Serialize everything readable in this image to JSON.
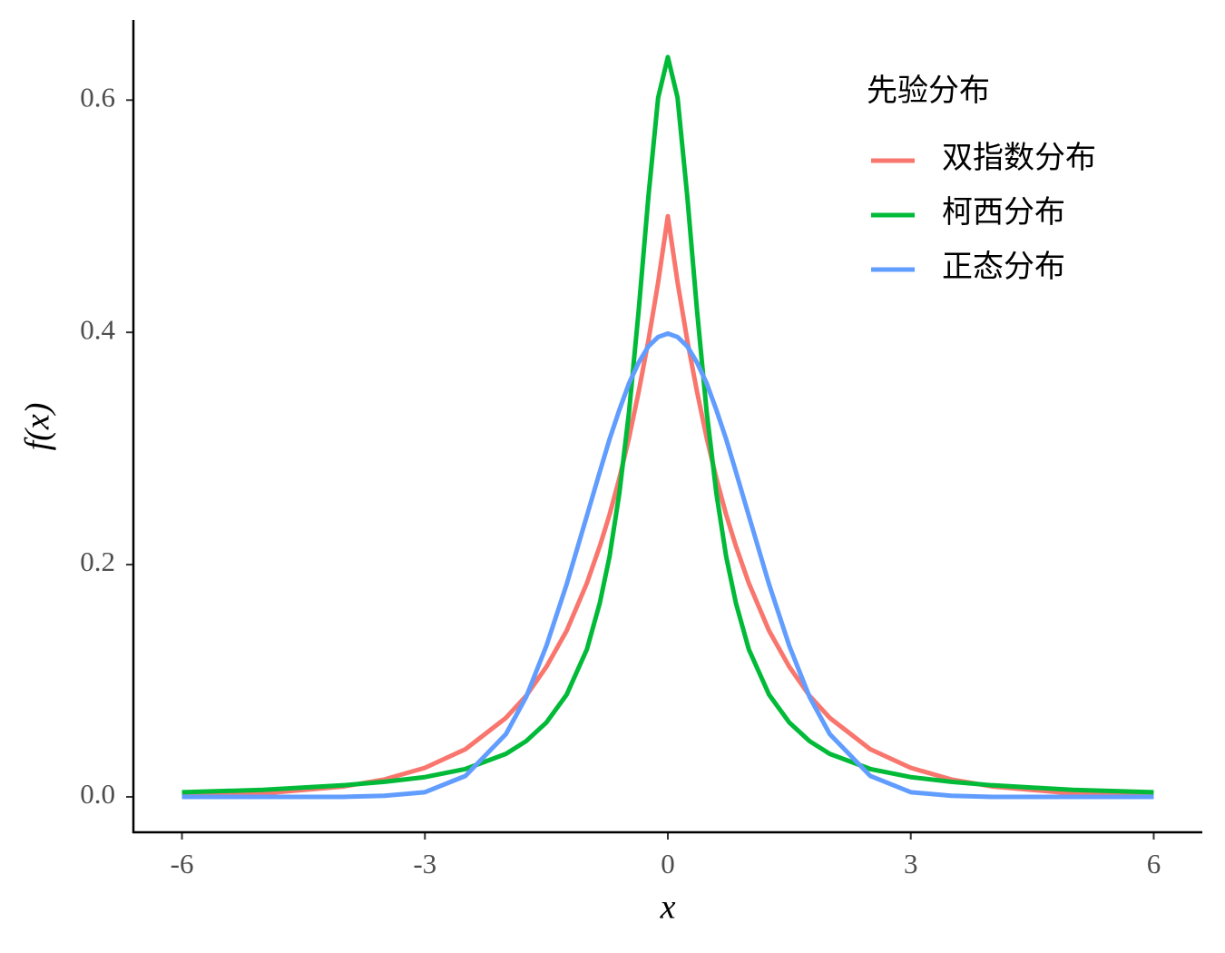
{
  "chart_data": {
    "type": "line",
    "xlabel": "x",
    "ylabel": "f(x)",
    "legend_title": "先验分布",
    "legend_position": "top-right",
    "grid": false,
    "x": [
      -6,
      -5,
      -4,
      -3.5,
      -3,
      -2.5,
      -2,
      -1.75,
      -1.5,
      -1.25,
      -1,
      -0.84,
      -0.72,
      -0.6,
      -0.48,
      -0.36,
      -0.24,
      -0.12,
      0,
      0.12,
      0.24,
      0.36,
      0.48,
      0.6,
      0.72,
      0.84,
      1,
      1.25,
      1.5,
      1.75,
      2,
      2.5,
      3,
      3.5,
      4,
      5,
      6
    ],
    "series": [
      {
        "name": "双指数分布",
        "color": "#f8766d",
        "values": [
          0.001,
          0.003,
          0.009,
          0.015,
          0.025,
          0.041,
          0.068,
          0.087,
          0.112,
          0.143,
          0.184,
          0.216,
          0.243,
          0.274,
          0.309,
          0.349,
          0.393,
          0.443,
          0.5,
          0.443,
          0.393,
          0.349,
          0.309,
          0.274,
          0.243,
          0.216,
          0.184,
          0.143,
          0.112,
          0.087,
          0.068,
          0.041,
          0.025,
          0.015,
          0.009,
          0.003,
          0.001
        ]
      },
      {
        "name": "柯西分布",
        "color": "#00ba38",
        "values": [
          0.004,
          0.006,
          0.01,
          0.013,
          0.017,
          0.024,
          0.037,
          0.048,
          0.064,
          0.088,
          0.127,
          0.167,
          0.207,
          0.261,
          0.331,
          0.419,
          0.517,
          0.602,
          0.637,
          0.602,
          0.517,
          0.419,
          0.331,
          0.261,
          0.207,
          0.167,
          0.127,
          0.088,
          0.064,
          0.048,
          0.037,
          0.024,
          0.017,
          0.013,
          0.01,
          0.006,
          0.004
        ]
      },
      {
        "name": "正态分布",
        "color": "#619cff",
        "values": [
          0,
          0,
          0,
          0.001,
          0.004,
          0.018,
          0.054,
          0.086,
          0.13,
          0.183,
          0.242,
          0.28,
          0.308,
          0.333,
          0.356,
          0.374,
          0.388,
          0.396,
          0.399,
          0.396,
          0.388,
          0.374,
          0.356,
          0.333,
          0.308,
          0.28,
          0.242,
          0.183,
          0.13,
          0.086,
          0.054,
          0.018,
          0.004,
          0.001,
          0,
          0,
          0
        ]
      }
    ],
    "xlim": [
      -6.6,
      6.6
    ],
    "xticks": [
      -6,
      -3,
      0,
      3,
      6
    ],
    "ylim": [
      -0.0305,
      0.669
    ],
    "yticks": [
      {
        "value": 0,
        "label": "0.0"
      },
      0.2,
      0.4,
      0.6
    ]
  }
}
